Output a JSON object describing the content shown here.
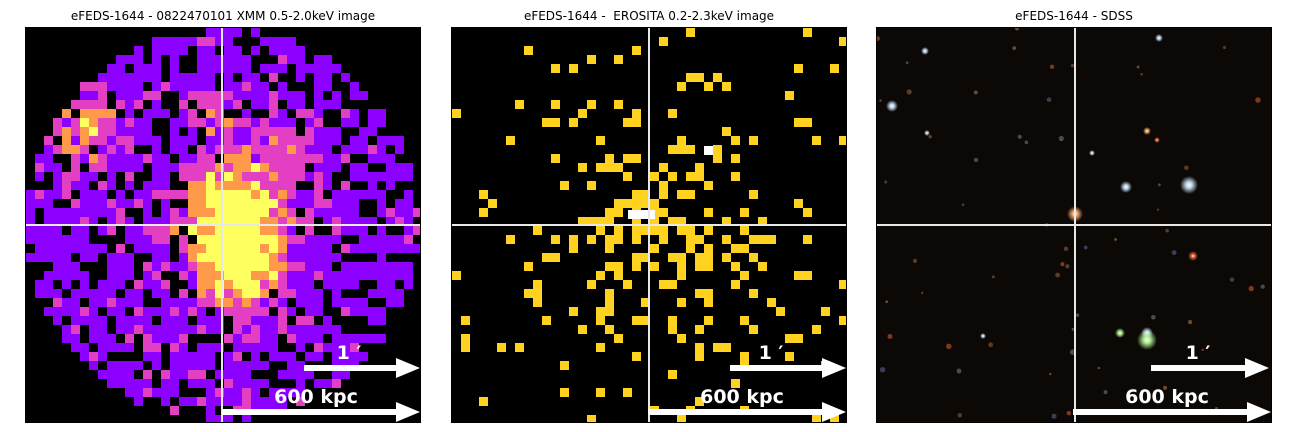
{
  "panels": [
    {
      "title": "eFEDS-1644 - 0822470101 XMM 0.5-2.0keV image",
      "angular_scale_label": "1 ′",
      "physical_scale_label": "600 kpc",
      "colormap": "plasma"
    },
    {
      "title": "eFEDS-1644 -  EROSITA 0.2-2.3keV image",
      "angular_scale_label": "1 ′",
      "physical_scale_label": "600 kpc",
      "colormap": "yellow-white"
    },
    {
      "title": "eFEDS-1644 - SDSS",
      "angular_scale_label": "1 ′",
      "physical_scale_label": "600 kpc",
      "colormap": "optical"
    }
  ],
  "colors": {
    "crosshair": "#e8e8e8",
    "xmm_low": "#8b00ff",
    "xmm_mid": "#e23fc3",
    "xmm_high": "#ff9a4a",
    "xmm_peak": "#ffff60",
    "erosita_count": "#ffd21f",
    "erosita_peak": "#ffffff"
  }
}
